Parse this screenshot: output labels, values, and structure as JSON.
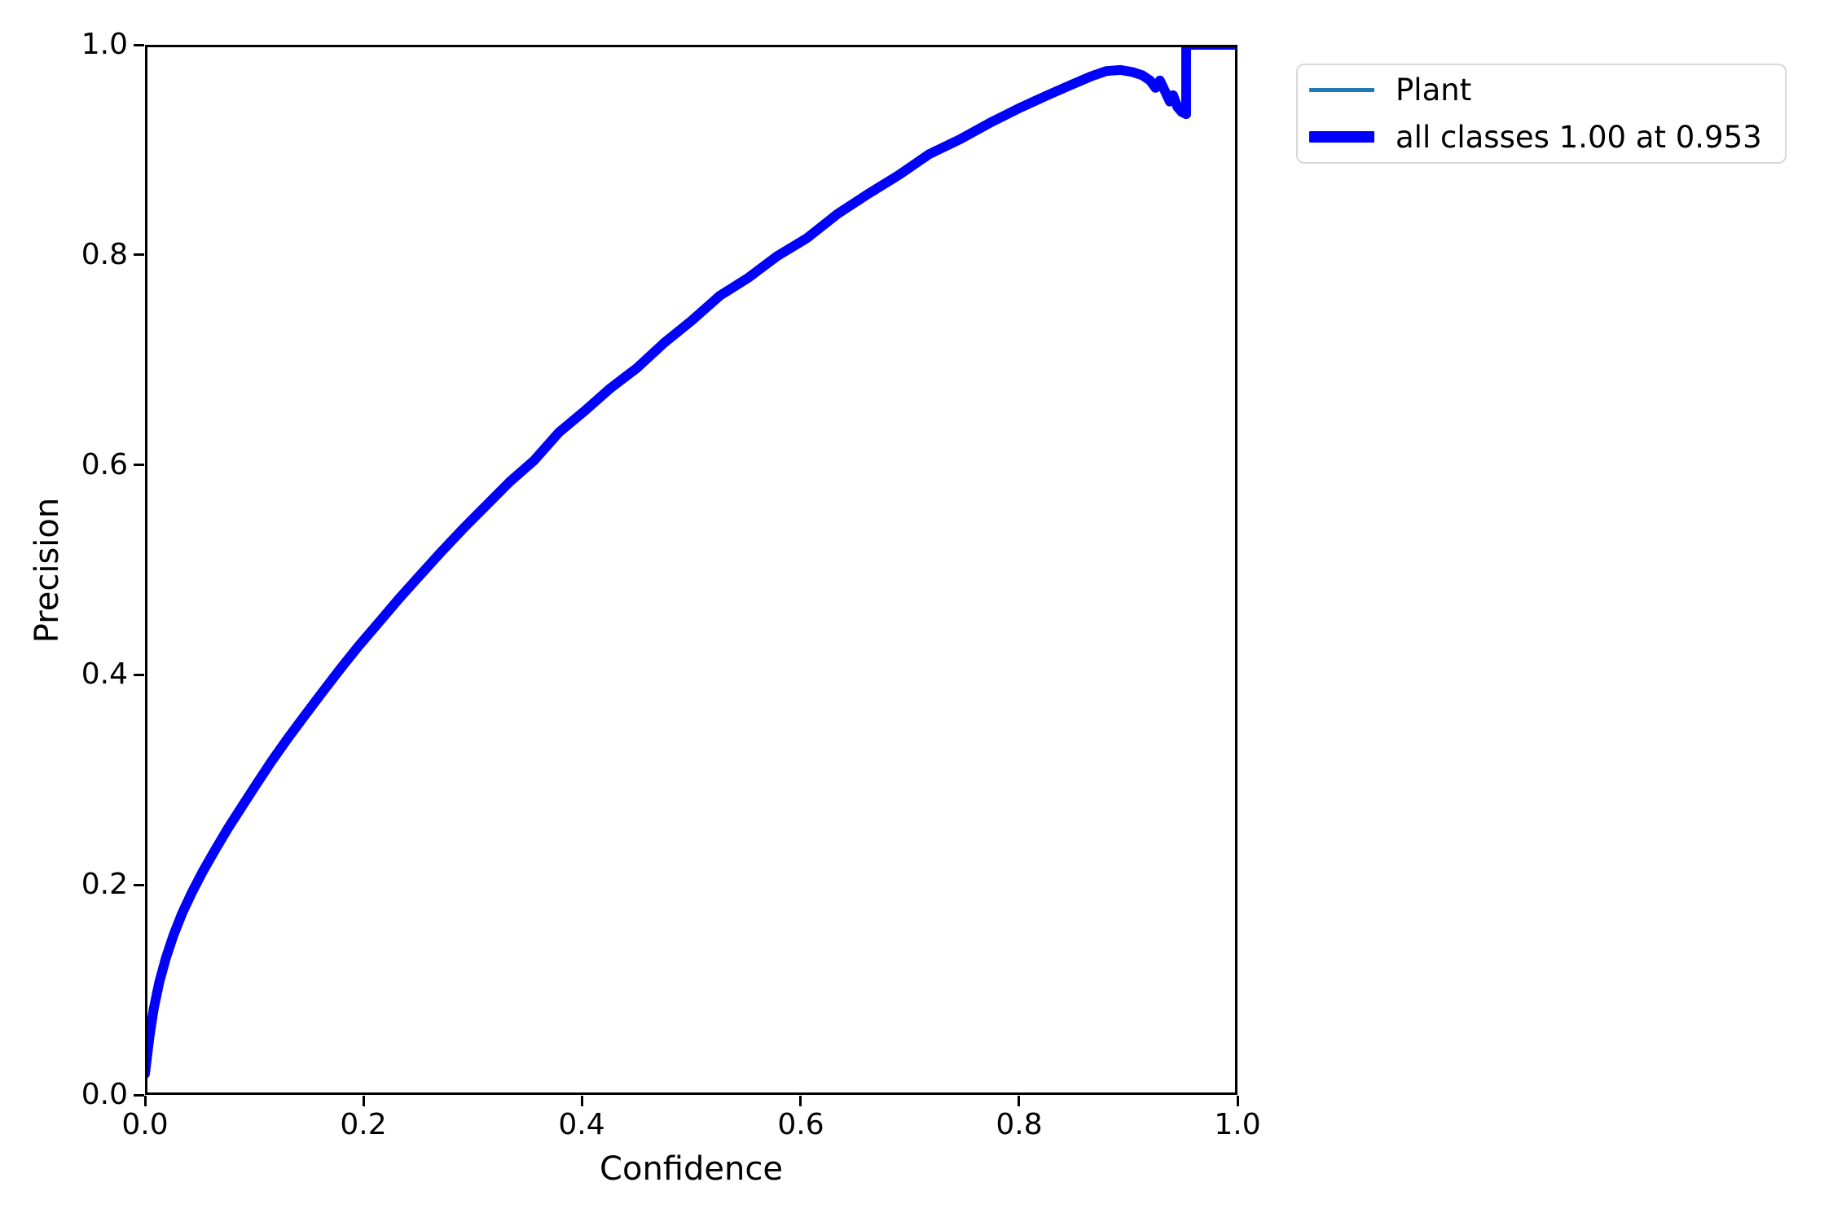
{
  "chart_data": {
    "type": "line",
    "title": "",
    "xlabel": "Confidence",
    "ylabel": "Precision",
    "xlim": [
      0.0,
      1.0
    ],
    "ylim": [
      0.0,
      1.0
    ],
    "xticks": [
      "0.0",
      "0.2",
      "0.4",
      "0.6",
      "0.8",
      "1.0"
    ],
    "yticks": [
      "0.0",
      "0.2",
      "0.4",
      "0.6",
      "0.8",
      "1.0"
    ],
    "grid": false,
    "legend_position": "outside-upper-right",
    "legend": [
      {
        "label": "Plant",
        "color": "#1f77b4",
        "sample_style": "thin"
      },
      {
        "label": "all classes 1.00 at 0.953",
        "color": "#0000ff",
        "sample_style": "thick"
      }
    ],
    "series": [
      {
        "name": "Plant",
        "color": "#1f77b4",
        "stroke_width": 4,
        "points_from": "shared"
      },
      {
        "name": "all classes 1.00 at 0.953",
        "color": "#0000ff",
        "stroke_width": 12,
        "points_from": "shared"
      }
    ],
    "points": [
      [
        0.0,
        0.02
      ],
      [
        0.004,
        0.055
      ],
      [
        0.008,
        0.082
      ],
      [
        0.013,
        0.107
      ],
      [
        0.019,
        0.13
      ],
      [
        0.026,
        0.152
      ],
      [
        0.034,
        0.173
      ],
      [
        0.043,
        0.193
      ],
      [
        0.053,
        0.213
      ],
      [
        0.064,
        0.233
      ],
      [
        0.076,
        0.254
      ],
      [
        0.089,
        0.275
      ],
      [
        0.102,
        0.296
      ],
      [
        0.116,
        0.318
      ],
      [
        0.131,
        0.34
      ],
      [
        0.146,
        0.361
      ],
      [
        0.162,
        0.383
      ],
      [
        0.179,
        0.406
      ],
      [
        0.196,
        0.428
      ],
      [
        0.214,
        0.45
      ],
      [
        0.232,
        0.472
      ],
      [
        0.251,
        0.494
      ],
      [
        0.271,
        0.517
      ],
      [
        0.291,
        0.539
      ],
      [
        0.312,
        0.561
      ],
      [
        0.334,
        0.584
      ],
      [
        0.356,
        0.604
      ],
      [
        0.379,
        0.631
      ],
      [
        0.402,
        0.651
      ],
      [
        0.426,
        0.673
      ],
      [
        0.45,
        0.692
      ],
      [
        0.475,
        0.716
      ],
      [
        0.5,
        0.737
      ],
      [
        0.526,
        0.761
      ],
      [
        0.552,
        0.778
      ],
      [
        0.579,
        0.799
      ],
      [
        0.606,
        0.816
      ],
      [
        0.634,
        0.839
      ],
      [
        0.662,
        0.858
      ],
      [
        0.69,
        0.876
      ],
      [
        0.718,
        0.896
      ],
      [
        0.746,
        0.91
      ],
      [
        0.774,
        0.926
      ],
      [
        0.801,
        0.94
      ],
      [
        0.826,
        0.952
      ],
      [
        0.848,
        0.962
      ],
      [
        0.866,
        0.97
      ],
      [
        0.88,
        0.975
      ],
      [
        0.893,
        0.976
      ],
      [
        0.904,
        0.974
      ],
      [
        0.913,
        0.971
      ],
      [
        0.92,
        0.966
      ],
      [
        0.925,
        0.959
      ],
      [
        0.929,
        0.966
      ],
      [
        0.934,
        0.955
      ],
      [
        0.938,
        0.946
      ],
      [
        0.941,
        0.952
      ],
      [
        0.945,
        0.941
      ],
      [
        0.949,
        0.936
      ],
      [
        0.953,
        0.934
      ],
      [
        0.953,
        1.0
      ],
      [
        1.0,
        1.0
      ]
    ]
  }
}
